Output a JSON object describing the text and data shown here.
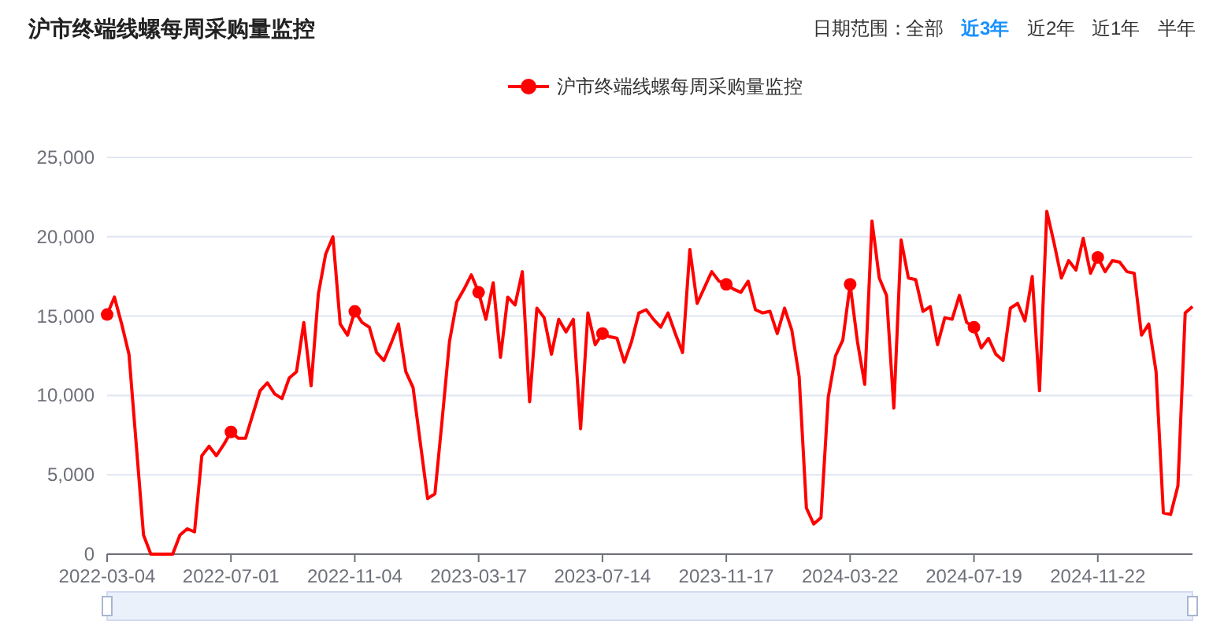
{
  "chart_data": {
    "type": "line",
    "title": "沪市终端线螺每周采购量监控",
    "annotations": [
      "日期范围：",
      "全部",
      "近3年",
      "近2年",
      "近1年",
      "半年"
    ],
    "categories": [
      "2022-03-04",
      null,
      null,
      null,
      null,
      null,
      null,
      null,
      null,
      null,
      null,
      null,
      null,
      null,
      null,
      null,
      null,
      "2022-07-01",
      null,
      null,
      null,
      null,
      null,
      null,
      null,
      null,
      null,
      null,
      null,
      null,
      null,
      null,
      null,
      null,
      "2022-11-04",
      null,
      null,
      null,
      null,
      null,
      null,
      null,
      null,
      null,
      null,
      null,
      null,
      null,
      null,
      null,
      null,
      "2023-03-17",
      null,
      null,
      null,
      null,
      null,
      null,
      null,
      null,
      null,
      null,
      null,
      null,
      null,
      null,
      null,
      null,
      "2023-07-14",
      null,
      null,
      null,
      null,
      null,
      null,
      null,
      null,
      null,
      null,
      null,
      null,
      null,
      null,
      null,
      null,
      "2023-11-17",
      null,
      null,
      null,
      null,
      null,
      null,
      null,
      null,
      null,
      null,
      null,
      null,
      null,
      null,
      null,
      null,
      "2024-03-22",
      null,
      null,
      null,
      null,
      null,
      null,
      null,
      null,
      null,
      null,
      null,
      null,
      null,
      null,
      null,
      null,
      "2024-07-19",
      null,
      null,
      null,
      null,
      null,
      null,
      null,
      null,
      null,
      null,
      null,
      null,
      null,
      null,
      null,
      null,
      "2024-11-22",
      null,
      null,
      null,
      null,
      null,
      null,
      null,
      null,
      null,
      null,
      null,
      null,
      null
    ],
    "series": [
      {
        "name": "沪市终端线螺每周采购量监控",
        "color": "#ff0000",
        "values": [
          15100,
          16200,
          14500,
          12600,
          6900,
          1200,
          0,
          0,
          0,
          0,
          1200,
          1600,
          1400,
          6200,
          6800,
          6200,
          6900,
          7700,
          7300,
          7300,
          8800,
          10300,
          10800,
          10100,
          9800,
          11100,
          11500,
          14600,
          10600,
          16400,
          18900,
          20000,
          14500,
          13800,
          15300,
          14600,
          14300,
          12700,
          12200,
          13300,
          14500,
          11500,
          10500,
          7000,
          3500,
          3800,
          8500,
          13400,
          15900,
          16700,
          17600,
          16500,
          14800,
          17100,
          12400,
          16200,
          15700,
          17800,
          9600,
          15500,
          14900,
          12600,
          14800,
          14000,
          14800,
          7900,
          15200,
          13200,
          13900,
          13700,
          13600,
          12100,
          13400,
          15200,
          15400,
          14800,
          14300,
          15200,
          13900,
          12700,
          19200,
          15800,
          16800,
          17800,
          17200,
          17000,
          16700,
          16500,
          17200,
          15400,
          15200,
          15300,
          13900,
          15500,
          14100,
          11200,
          2900,
          1900,
          2300,
          9900,
          12500,
          13500,
          17000,
          13400,
          10700,
          21000,
          17400,
          16300,
          9200,
          19800,
          17400,
          17300,
          15300,
          15600,
          13200,
          14900,
          14800,
          16300,
          14600,
          14300,
          13000,
          13600,
          12600,
          12200,
          15500,
          15800,
          14700,
          17500,
          10300,
          21600,
          19600,
          17400,
          18500,
          17900,
          19900,
          17700,
          18700,
          17800,
          18500,
          18400,
          17800,
          17700,
          13800,
          14500,
          11500,
          2600,
          2500,
          4300,
          15200,
          15600
        ]
      }
    ],
    "ylim": [
      0,
      25000
    ],
    "yticks": [
      0,
      {
        "value": 5000,
        "label": "5,000"
      },
      {
        "value": 10000,
        "label": "10,000"
      },
      {
        "value": 15000,
        "label": "15,000"
      },
      {
        "value": 20000,
        "label": "20,000"
      },
      {
        "value": 25000,
        "label": "25,000"
      }
    ],
    "grid": "y",
    "legend": "top",
    "line_style": "solid"
  }
}
